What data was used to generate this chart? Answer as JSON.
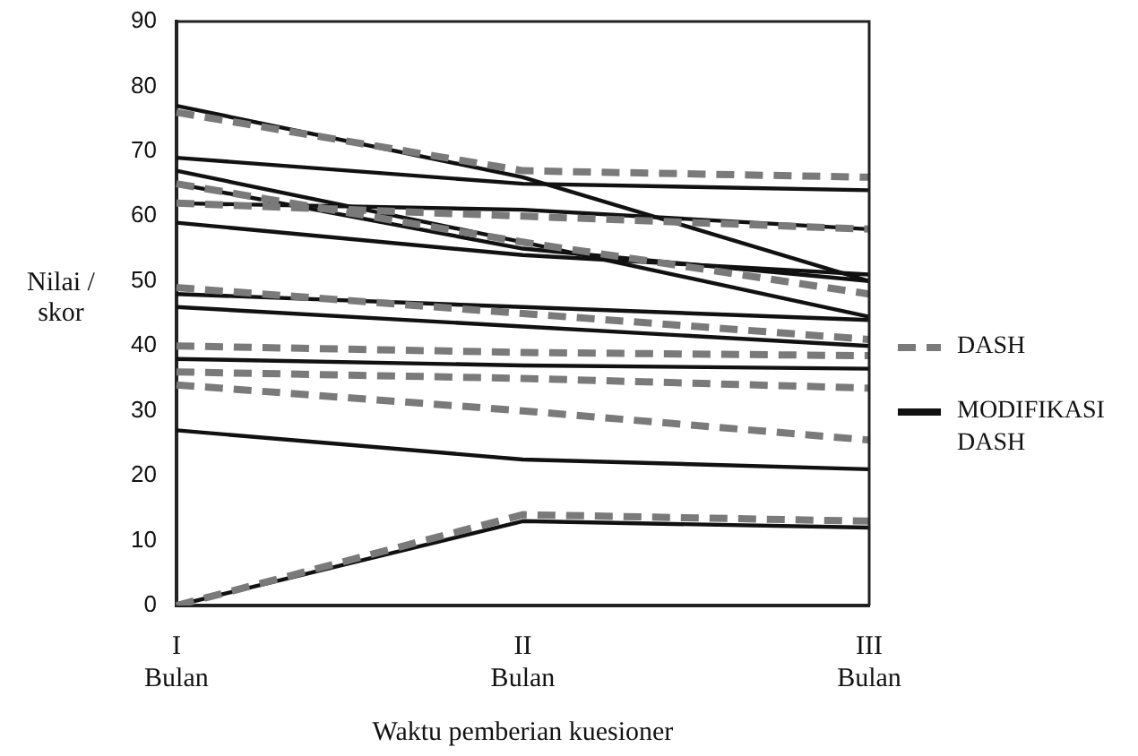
{
  "chart_data": {
    "type": "line",
    "xlabel": "Waktu pemberian kuesioner",
    "ylabel": "Nilai / skor",
    "categories": [
      "I\nBulan",
      "II\nBulan",
      "III\nBulan"
    ],
    "ylim": [
      0,
      90
    ],
    "yticks": [
      0,
      10,
      20,
      30,
      40,
      50,
      60,
      70,
      80,
      90
    ],
    "grid": false,
    "legend": "right",
    "marker": "none",
    "series": [
      {
        "name": "DASH",
        "color": "#7a7a7a",
        "line_style": "dashed",
        "values": [
          76,
          67,
          66
        ]
      },
      {
        "color": "#7a7a7a",
        "line_style": "dashed",
        "values": [
          62,
          60,
          58
        ]
      },
      {
        "color": "#7a7a7a",
        "line_style": "dashed",
        "values": [
          65,
          56,
          48
        ]
      },
      {
        "color": "#7a7a7a",
        "line_style": "dashed",
        "values": [
          49,
          45,
          41
        ]
      },
      {
        "color": "#7a7a7a",
        "line_style": "dashed",
        "values": [
          40,
          39,
          38.5
        ]
      },
      {
        "color": "#7a7a7a",
        "line_style": "dashed",
        "values": [
          36,
          35,
          33.5
        ]
      },
      {
        "color": "#7a7a7a",
        "line_style": "dashed",
        "values": [
          34,
          30,
          25.5
        ]
      },
      {
        "color": "#7a7a7a",
        "line_style": "dashed",
        "values": [
          0,
          14,
          13
        ]
      },
      {
        "name": "MODIFIKASI DASH",
        "color": "#111111",
        "line_style": "solid",
        "values": [
          77,
          66,
          50
        ]
      },
      {
        "color": "#111111",
        "line_style": "solid",
        "values": [
          69,
          65,
          64
        ]
      },
      {
        "color": "#111111",
        "line_style": "solid",
        "values": [
          67,
          56,
          44.5
        ]
      },
      {
        "color": "#111111",
        "line_style": "solid",
        "values": [
          65,
          55,
          50
        ]
      },
      {
        "color": "#111111",
        "line_style": "solid",
        "values": [
          62,
          61,
          58
        ]
      },
      {
        "color": "#111111",
        "line_style": "solid",
        "values": [
          59,
          54,
          51
        ]
      },
      {
        "color": "#111111",
        "line_style": "solid",
        "values": [
          48,
          46,
          44
        ]
      },
      {
        "color": "#111111",
        "line_style": "solid",
        "values": [
          46,
          43,
          40
        ]
      },
      {
        "color": "#111111",
        "line_style": "solid",
        "values": [
          38,
          37,
          36.5
        ]
      },
      {
        "color": "#111111",
        "line_style": "solid",
        "values": [
          27,
          22.5,
          21
        ]
      },
      {
        "color": "#111111",
        "line_style": "solid",
        "values": [
          0,
          13,
          12
        ]
      }
    ]
  }
}
